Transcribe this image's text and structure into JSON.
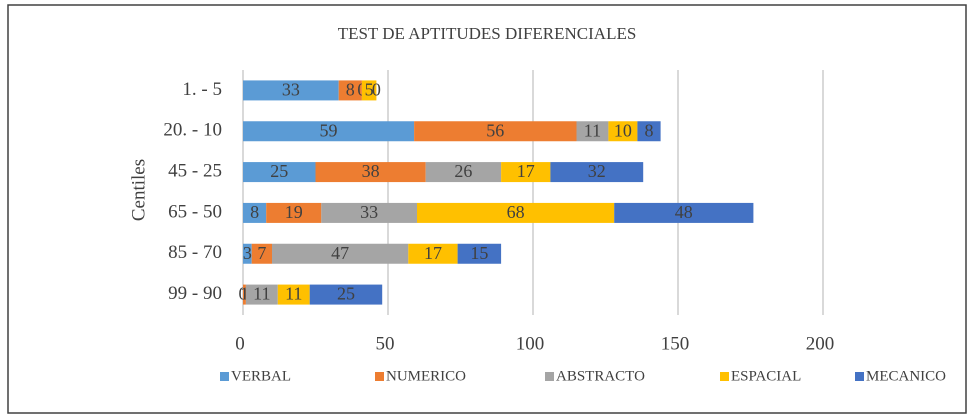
{
  "chart_data": {
    "type": "bar",
    "orientation": "horizontal",
    "stacked": true,
    "title": "TEST DE APTITUDES DIFERENCIALES",
    "y_label": "Centiles",
    "categories": [
      "1. - 5",
      "20. - 10",
      "45 - 25",
      "65 - 50",
      "85 - 70",
      "99 - 90"
    ],
    "series": [
      {
        "name": "VERBAL",
        "color": "#5b9bd5",
        "values": [
          33,
          59,
          25,
          8,
          3,
          0
        ]
      },
      {
        "name": "NUMERICO",
        "color": "#ed7d31",
        "values": [
          8,
          56,
          38,
          19,
          7,
          1
        ]
      },
      {
        "name": "ABSTRACTO",
        "color": "#a5a5a5",
        "values": [
          0,
          11,
          26,
          33,
          47,
          11
        ]
      },
      {
        "name": "ESPACIAL",
        "color": "#ffc000",
        "values": [
          5,
          10,
          17,
          68,
          17,
          11
        ]
      },
      {
        "name": "MECANICO",
        "color": "#4472c4",
        "values": [
          0,
          8,
          32,
          48,
          15,
          25
        ]
      }
    ],
    "xlim": [
      0,
      200
    ],
    "xticks": [
      0,
      50,
      100,
      150,
      200
    ],
    "grid": true,
    "legend": "bottom"
  }
}
